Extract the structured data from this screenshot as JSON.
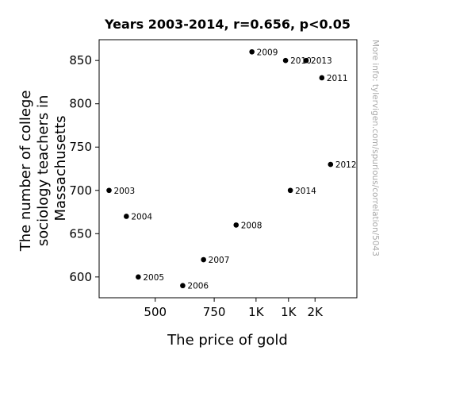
{
  "chart_data": {
    "type": "scatter",
    "title": "Years 2003-2014, r=0.656, p<0.05",
    "xlabel": "The price of gold",
    "ylabel_lines": [
      "The number of college",
      "sociology teachers in",
      "Massachusetts"
    ],
    "watermark": "More info: tylervigen.com/spurious/correlation/5043",
    "x_scale": "log",
    "xlim": [
      340,
      2000
    ],
    "ylim": [
      576,
      874
    ],
    "x_ticks": [
      {
        "value": 500,
        "label": "500"
      },
      {
        "value": 750,
        "label": "750"
      },
      {
        "value": 1000,
        "label": "1K"
      },
      {
        "value": 1250,
        "label": "1K"
      },
      {
        "value": 1500,
        "label": "2K"
      }
    ],
    "y_ticks": [
      {
        "value": 600,
        "label": "600"
      },
      {
        "value": 650,
        "label": "650"
      },
      {
        "value": 700,
        "label": "700"
      },
      {
        "value": 750,
        "label": "750"
      },
      {
        "value": 800,
        "label": "800"
      },
      {
        "value": 850,
        "label": "850"
      }
    ],
    "points": [
      {
        "label": "2003",
        "x": 364,
        "y": 700
      },
      {
        "label": "2004",
        "x": 410,
        "y": 670
      },
      {
        "label": "2005",
        "x": 445,
        "y": 600
      },
      {
        "label": "2006",
        "x": 604,
        "y": 590
      },
      {
        "label": "2007",
        "x": 697,
        "y": 620
      },
      {
        "label": "2008",
        "x": 872,
        "y": 660
      },
      {
        "label": "2009",
        "x": 972,
        "y": 860
      },
      {
        "label": "2010",
        "x": 1225,
        "y": 850
      },
      {
        "label": "2011",
        "x": 1572,
        "y": 830
      },
      {
        "label": "2012",
        "x": 1669,
        "y": 730
      },
      {
        "label": "2013",
        "x": 1411,
        "y": 850
      },
      {
        "label": "2014",
        "x": 1266,
        "y": 700
      }
    ],
    "grid": false,
    "marker_color": "#000000"
  }
}
